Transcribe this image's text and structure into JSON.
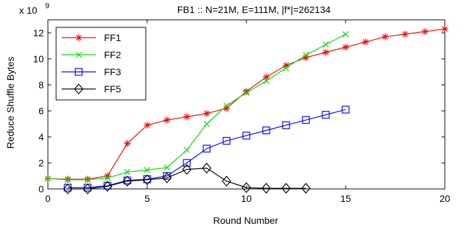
{
  "chart_data": {
    "type": "line",
    "title": "FB1 :: N=21M, E=111M, |f*|=262134",
    "xlabel": "Round Number",
    "ylabel": "Reduce Shuffle Bytes",
    "y_multiplier_label": "x 10",
    "y_multiplier_exponent": "9",
    "xlim": [
      0,
      20
    ],
    "ylim": [
      0,
      13
    ],
    "xticks": [
      "0",
      "5",
      "10",
      "15",
      "20"
    ],
    "yticks": [
      "0",
      "2",
      "4",
      "6",
      "8",
      "10",
      "12"
    ],
    "grid": false,
    "legend_position": "top-left",
    "series": [
      {
        "name": "FF1",
        "color": "#ff0000",
        "marker": "asterisk",
        "x": [
          0,
          1,
          2,
          3,
          4,
          5,
          6,
          7,
          8,
          9,
          10,
          11,
          12,
          13,
          14,
          15,
          16,
          17,
          18,
          19,
          20
        ],
        "values": [
          0.8,
          0.75,
          0.75,
          1.0,
          3.5,
          4.9,
          5.3,
          5.55,
          5.8,
          6.2,
          7.5,
          8.6,
          9.5,
          10.1,
          10.5,
          10.9,
          11.3,
          11.7,
          11.9,
          12.1,
          12.3
        ]
      },
      {
        "name": "FF2",
        "color": "#00dd00",
        "marker": "x",
        "x": [
          0,
          1,
          2,
          3,
          4,
          5,
          6,
          7,
          8,
          9,
          10,
          11,
          12,
          13,
          14,
          15
        ],
        "values": [
          0.8,
          0.7,
          0.7,
          0.85,
          1.3,
          1.45,
          1.65,
          3.0,
          5.0,
          6.4,
          7.4,
          8.3,
          9.3,
          10.3,
          11.1,
          11.9
        ]
      },
      {
        "name": "FF3",
        "color": "#0000ff",
        "marker": "square",
        "x": [
          1,
          2,
          3,
          4,
          5,
          6,
          7,
          8,
          9,
          10,
          11,
          12,
          13,
          14,
          15
        ],
        "values": [
          0.1,
          0.1,
          0.25,
          0.65,
          0.75,
          1.0,
          2.0,
          3.1,
          3.7,
          4.1,
          4.5,
          4.9,
          5.3,
          5.7,
          6.1
        ]
      },
      {
        "name": "FF5",
        "color": "#000000",
        "marker": "diamond",
        "x": [
          1,
          2,
          3,
          4,
          5,
          6,
          7,
          8,
          9,
          10,
          11,
          12,
          13
        ],
        "values": [
          0.0,
          0.0,
          0.2,
          0.6,
          0.7,
          0.85,
          1.5,
          1.6,
          0.6,
          0.1,
          0.05,
          0.05,
          0.05
        ]
      }
    ]
  }
}
